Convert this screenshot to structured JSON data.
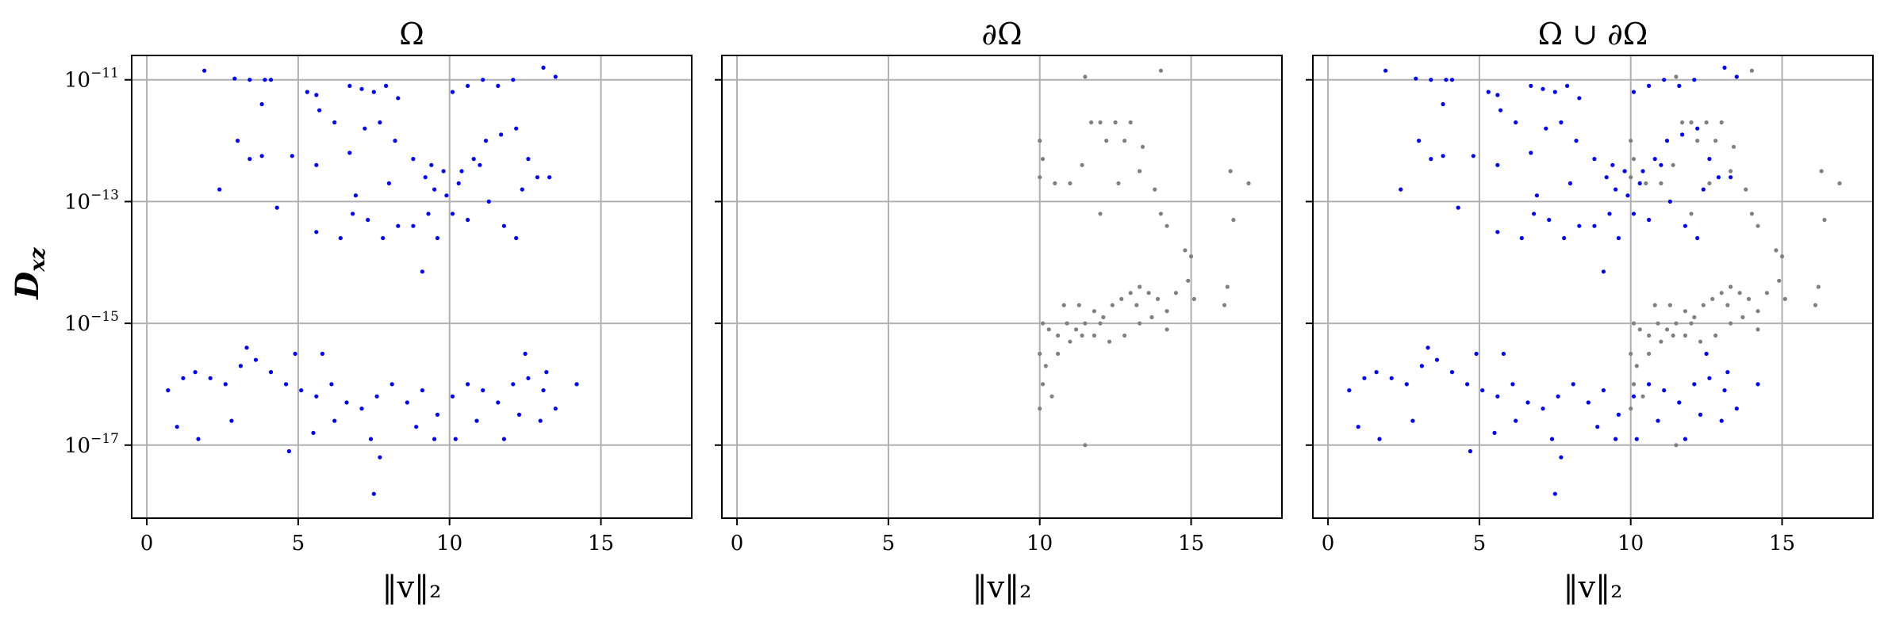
{
  "chart_data": [
    {
      "type": "scatter",
      "title": "Ω",
      "xlabel": "‖v‖₂",
      "ylabel": "D_xz",
      "xlim": [
        -0.5,
        18
      ],
      "ylim_log10": [
        -18.2,
        -10.6
      ],
      "yscale": "log",
      "xticks": [
        0,
        5,
        10,
        15
      ],
      "xtick_labels": [
        "0",
        "5",
        "10",
        "15"
      ],
      "yticks_log10": [
        -11,
        -13,
        -15,
        -17
      ],
      "ytick_labels": [
        "10−11",
        "10−13",
        "10−15",
        "10−17"
      ],
      "grid": true,
      "series": [
        {
          "color": "#0000ff",
          "points": [
            [
              1.9,
              -10.85
            ],
            [
              2.9,
              -10.98
            ],
            [
              3.4,
              -11.0
            ],
            [
              3.9,
              -11.0
            ],
            [
              4.1,
              -11.0
            ],
            [
              3.8,
              -11.4
            ],
            [
              5.3,
              -11.2
            ],
            [
              5.6,
              -11.25
            ],
            [
              6.7,
              -11.1
            ],
            [
              7.1,
              -11.15
            ],
            [
              7.5,
              -11.2
            ],
            [
              7.9,
              -11.1
            ],
            [
              8.3,
              -11.3
            ],
            [
              10.1,
              -11.2
            ],
            [
              10.6,
              -11.1
            ],
            [
              11.1,
              -11.0
            ],
            [
              11.6,
              -11.1
            ],
            [
              12.1,
              -11.0
            ],
            [
              13.1,
              -10.8
            ],
            [
              13.5,
              -10.95
            ],
            [
              3.0,
              -12.0
            ],
            [
              3.4,
              -12.3
            ],
            [
              3.8,
              -12.25
            ],
            [
              4.8,
              -12.25
            ],
            [
              5.6,
              -12.4
            ],
            [
              5.7,
              -11.5
            ],
            [
              6.2,
              -11.7
            ],
            [
              6.7,
              -12.2
            ],
            [
              7.2,
              -11.8
            ],
            [
              7.7,
              -11.7
            ],
            [
              8.2,
              -12.0
            ],
            [
              8.8,
              -12.3
            ],
            [
              9.2,
              -12.6
            ],
            [
              9.5,
              -12.8
            ],
            [
              9.8,
              -12.5
            ],
            [
              10.3,
              -12.7
            ],
            [
              10.8,
              -12.3
            ],
            [
              11.2,
              -12.0
            ],
            [
              11.7,
              -11.9
            ],
            [
              12.2,
              -11.8
            ],
            [
              12.6,
              -12.3
            ],
            [
              12.9,
              -12.6
            ],
            [
              13.3,
              -12.6
            ],
            [
              2.4,
              -12.8
            ],
            [
              4.3,
              -13.1
            ],
            [
              5.6,
              -13.5
            ],
            [
              6.4,
              -13.6
            ],
            [
              6.8,
              -13.2
            ],
            [
              7.3,
              -13.3
            ],
            [
              7.8,
              -13.6
            ],
            [
              8.3,
              -13.4
            ],
            [
              8.8,
              -13.4
            ],
            [
              9.3,
              -13.2
            ],
            [
              9.6,
              -13.6
            ],
            [
              10.1,
              -13.2
            ],
            [
              10.6,
              -13.3
            ],
            [
              11.3,
              -13.0
            ],
            [
              11.8,
              -13.4
            ],
            [
              12.2,
              -13.6
            ],
            [
              12.4,
              -12.8
            ],
            [
              9.1,
              -14.15
            ],
            [
              9.4,
              -12.4
            ],
            [
              9.9,
              -12.9
            ],
            [
              10.4,
              -12.5
            ],
            [
              11.0,
              -12.4
            ],
            [
              8.0,
              -12.7
            ],
            [
              6.9,
              -12.9
            ],
            [
              0.7,
              -16.1
            ],
            [
              1.2,
              -15.9
            ],
            [
              1.6,
              -15.8
            ],
            [
              2.1,
              -15.9
            ],
            [
              2.6,
              -16.0
            ],
            [
              3.1,
              -15.7
            ],
            [
              3.6,
              -15.6
            ],
            [
              4.1,
              -15.8
            ],
            [
              4.6,
              -16.0
            ],
            [
              5.1,
              -16.1
            ],
            [
              5.6,
              -16.2
            ],
            [
              6.1,
              -16.0
            ],
            [
              6.6,
              -16.3
            ],
            [
              7.1,
              -16.4
            ],
            [
              7.6,
              -16.2
            ],
            [
              8.1,
              -16.0
            ],
            [
              8.6,
              -16.3
            ],
            [
              9.1,
              -16.1
            ],
            [
              9.6,
              -16.5
            ],
            [
              10.1,
              -16.2
            ],
            [
              10.6,
              -16.0
            ],
            [
              11.1,
              -16.1
            ],
            [
              11.6,
              -16.3
            ],
            [
              12.1,
              -16.0
            ],
            [
              12.6,
              -15.9
            ],
            [
              13.1,
              -16.1
            ],
            [
              13.5,
              -16.4
            ],
            [
              14.2,
              -16.0
            ],
            [
              1.0,
              -16.7
            ],
            [
              1.7,
              -16.9
            ],
            [
              2.8,
              -16.6
            ],
            [
              4.7,
              -17.1
            ],
            [
              5.5,
              -16.8
            ],
            [
              6.2,
              -16.6
            ],
            [
              7.4,
              -16.9
            ],
            [
              8.9,
              -16.7
            ],
            [
              9.5,
              -16.9
            ],
            [
              10.2,
              -16.9
            ],
            [
              11.8,
              -16.9
            ],
            [
              13.0,
              -16.6
            ],
            [
              7.5,
              -17.8
            ],
            [
              7.7,
              -17.2
            ],
            [
              3.3,
              -15.4
            ],
            [
              4.9,
              -15.5
            ],
            [
              5.8,
              -15.5
            ],
            [
              12.5,
              -15.5
            ],
            [
              13.2,
              -15.8
            ],
            [
              10.9,
              -16.6
            ],
            [
              12.3,
              -16.5
            ]
          ]
        }
      ]
    },
    {
      "type": "scatter",
      "title": "∂Ω",
      "xlabel": "‖v‖₂",
      "xlim": [
        -0.5,
        18
      ],
      "ylim_log10": [
        -18.2,
        -10.6
      ],
      "yscale": "log",
      "xticks": [
        0,
        5,
        10,
        15
      ],
      "xtick_labels": [
        "0",
        "5",
        "10",
        "15"
      ],
      "yticks_log10": [
        -11,
        -13,
        -15,
        -17
      ],
      "grid": true,
      "series": [
        {
          "color": "#808080",
          "points": [
            [
              11.5,
              -10.95
            ],
            [
              14.0,
              -10.85
            ],
            [
              11.7,
              -11.7
            ],
            [
              12.0,
              -11.7
            ],
            [
              12.5,
              -11.7
            ],
            [
              13.0,
              -11.7
            ],
            [
              12.2,
              -12.0
            ],
            [
              12.8,
              -12.0
            ],
            [
              13.4,
              -12.1
            ],
            [
              10.0,
              -12.0
            ],
            [
              10.1,
              -12.3
            ],
            [
              10.5,
              -12.7
            ],
            [
              11.0,
              -12.7
            ],
            [
              11.4,
              -12.4
            ],
            [
              12.6,
              -12.7
            ],
            [
              13.3,
              -12.5
            ],
            [
              13.8,
              -12.8
            ],
            [
              14.0,
              -13.2
            ],
            [
              14.2,
              -13.4
            ],
            [
              12.0,
              -13.2
            ],
            [
              16.3,
              -12.5
            ],
            [
              16.9,
              -12.7
            ],
            [
              16.4,
              -13.3
            ],
            [
              14.8,
              -13.8
            ],
            [
              10.0,
              -12.6
            ],
            [
              10.1,
              -15.0
            ],
            [
              10.3,
              -15.1
            ],
            [
              10.6,
              -15.2
            ],
            [
              10.9,
              -15.0
            ],
            [
              11.2,
              -15.1
            ],
            [
              11.5,
              -15.0
            ],
            [
              11.8,
              -14.8
            ],
            [
              12.1,
              -14.9
            ],
            [
              12.4,
              -14.7
            ],
            [
              12.7,
              -14.6
            ],
            [
              13.0,
              -14.5
            ],
            [
              13.3,
              -14.4
            ],
            [
              13.6,
              -14.5
            ],
            [
              13.9,
              -14.6
            ],
            [
              14.2,
              -14.8
            ],
            [
              14.5,
              -14.5
            ],
            [
              14.9,
              -14.3
            ],
            [
              15.0,
              -13.9
            ],
            [
              15.1,
              -14.6
            ],
            [
              16.1,
              -14.7
            ],
            [
              16.2,
              -14.4
            ],
            [
              10.0,
              -15.5
            ],
            [
              10.2,
              -15.7
            ],
            [
              10.6,
              -15.5
            ],
            [
              11.0,
              -15.3
            ],
            [
              11.4,
              -15.2
            ],
            [
              11.8,
              -15.2
            ],
            [
              12.3,
              -15.3
            ],
            [
              12.8,
              -15.2
            ],
            [
              13.3,
              -15.0
            ],
            [
              13.7,
              -14.9
            ],
            [
              14.2,
              -15.1
            ],
            [
              10.1,
              -16.0
            ],
            [
              10.4,
              -16.2
            ],
            [
              10.0,
              -16.4
            ],
            [
              11.5,
              -17.0
            ],
            [
              10.8,
              -14.7
            ],
            [
              11.3,
              -14.7
            ],
            [
              12.0,
              -15.0
            ],
            [
              13.2,
              -14.7
            ]
          ]
        }
      ]
    },
    {
      "type": "scatter",
      "title": "Ω ∪ ∂Ω",
      "xlabel": "‖v‖₂",
      "xlim": [
        -0.5,
        18
      ],
      "ylim_log10": [
        -18.2,
        -10.6
      ],
      "yscale": "log",
      "xticks": [
        0,
        5,
        10,
        15
      ],
      "xtick_labels": [
        "0",
        "5",
        "10",
        "15"
      ],
      "yticks_log10": [
        -11,
        -13,
        -15,
        -17
      ],
      "grid": true,
      "series_refs": [
        0,
        1
      ]
    }
  ]
}
